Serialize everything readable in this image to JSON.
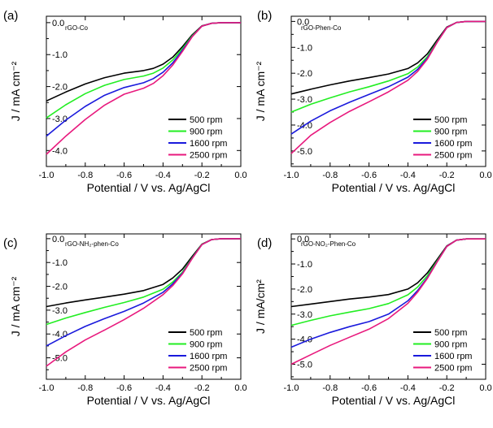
{
  "chart_data": [
    {
      "type": "line",
      "panel_label": "(a)",
      "inset_label": "rGO-Co",
      "xlabel": "Potential / V vs. Ag/AgCl",
      "ylabel": "J / mA cm⁻²",
      "xlim": [
        -1.0,
        0.0
      ],
      "ylim": [
        -4.5,
        0.2
      ],
      "xticks": [
        "-1.0",
        "-0.8",
        "-0.6",
        "-0.4",
        "-0.2",
        "0.0"
      ],
      "yticks": [
        "0.0",
        "-1.0",
        "-2.0",
        "-3.0",
        "-4.0"
      ],
      "legend_position": "lower-right",
      "x": [
        -1.0,
        -0.9,
        -0.8,
        -0.7,
        -0.6,
        -0.5,
        -0.45,
        -0.4,
        -0.35,
        -0.3,
        -0.25,
        -0.2,
        -0.15,
        -0.1,
        -0.05,
        0.0
      ],
      "series": [
        {
          "name": "500 rpm",
          "values": [
            -2.45,
            -2.17,
            -1.92,
            -1.72,
            -1.58,
            -1.5,
            -1.43,
            -1.3,
            -1.08,
            -0.75,
            -0.38,
            -0.1,
            -0.02,
            0.0,
            0.0,
            0.0
          ]
        },
        {
          "name": "900 rpm",
          "values": [
            -2.98,
            -2.57,
            -2.22,
            -1.96,
            -1.78,
            -1.67,
            -1.58,
            -1.42,
            -1.17,
            -0.81,
            -0.41,
            -0.11,
            -0.02,
            0.0,
            0.0,
            0.0
          ]
        },
        {
          "name": "1600 rpm",
          "values": [
            -3.55,
            -3.05,
            -2.62,
            -2.27,
            -2.03,
            -1.88,
            -1.75,
            -1.55,
            -1.26,
            -0.86,
            -0.43,
            -0.11,
            -0.02,
            0.0,
            0.0,
            0.0
          ]
        },
        {
          "name": "2500 rpm",
          "values": [
            -4.12,
            -3.55,
            -3.03,
            -2.58,
            -2.24,
            -2.05,
            -1.9,
            -1.66,
            -1.33,
            -0.9,
            -0.44,
            -0.11,
            -0.02,
            0.0,
            0.0,
            0.0
          ]
        }
      ]
    },
    {
      "type": "line",
      "panel_label": "(b)",
      "inset_label": "rGO-Phen-Co",
      "xlabel": "Potential / V vs. Ag/AgCl",
      "ylabel": "J / mA cm⁻²",
      "xlim": [
        -1.0,
        0.0
      ],
      "ylim": [
        -5.6,
        0.2
      ],
      "xticks": [
        "-1.0",
        "-0.8",
        "-0.6",
        "-0.4",
        "-0.2",
        "0.0"
      ],
      "yticks": [
        "0.0",
        "-1.0",
        "-2.0",
        "-3.0",
        "-4.0",
        "-5.0"
      ],
      "legend_position": "lower-right",
      "x": [
        -1.0,
        -0.9,
        -0.8,
        -0.7,
        -0.6,
        -0.5,
        -0.4,
        -0.35,
        -0.3,
        -0.25,
        -0.2,
        -0.15,
        -0.1,
        -0.05,
        0.0
      ],
      "series": [
        {
          "name": "500 rpm",
          "values": [
            -2.8,
            -2.62,
            -2.45,
            -2.3,
            -2.17,
            -2.03,
            -1.82,
            -1.6,
            -1.25,
            -0.72,
            -0.22,
            -0.04,
            0.0,
            0.0,
            0.0
          ]
        },
        {
          "name": "900 rpm",
          "values": [
            -3.5,
            -3.2,
            -2.95,
            -2.72,
            -2.52,
            -2.3,
            -2.02,
            -1.76,
            -1.36,
            -0.78,
            -0.24,
            -0.04,
            0.0,
            0.0,
            0.0
          ]
        },
        {
          "name": "1600 rpm",
          "values": [
            -4.35,
            -3.85,
            -3.45,
            -3.12,
            -2.82,
            -2.52,
            -2.15,
            -1.85,
            -1.42,
            -0.8,
            -0.24,
            -0.04,
            0.0,
            0.0,
            0.0
          ]
        },
        {
          "name": "2500 rpm",
          "values": [
            -5.1,
            -4.4,
            -3.9,
            -3.47,
            -3.1,
            -2.72,
            -2.27,
            -1.93,
            -1.46,
            -0.81,
            -0.24,
            -0.04,
            0.0,
            0.0,
            0.0
          ]
        }
      ]
    },
    {
      "type": "line",
      "panel_label": "(c)",
      "inset_label": "rGO-NH₂-phen-Co",
      "xlabel": "Potential / V vs. Ag/AgCl",
      "ylabel": "J / mA cm⁻²",
      "xlim": [
        -1.0,
        0.0
      ],
      "ylim": [
        -5.9,
        0.2
      ],
      "xticks": [
        "-1.0",
        "-0.8",
        "-0.6",
        "-0.4",
        "-0.2",
        "0.0"
      ],
      "yticks": [
        "0.0",
        "-1.0",
        "-2.0",
        "-3.0",
        "-4.0",
        "-5.0"
      ],
      "legend_position": "lower-right",
      "x": [
        -1.0,
        -0.9,
        -0.8,
        -0.7,
        -0.6,
        -0.5,
        -0.4,
        -0.35,
        -0.3,
        -0.25,
        -0.2,
        -0.15,
        -0.1,
        -0.05,
        0.0
      ],
      "series": [
        {
          "name": "500 rpm",
          "values": [
            -2.85,
            -2.7,
            -2.57,
            -2.45,
            -2.33,
            -2.18,
            -1.92,
            -1.65,
            -1.28,
            -0.74,
            -0.23,
            -0.04,
            0.0,
            0.0,
            0.0
          ]
        },
        {
          "name": "900 rpm",
          "values": [
            -3.6,
            -3.33,
            -3.1,
            -2.88,
            -2.68,
            -2.45,
            -2.12,
            -1.82,
            -1.4,
            -0.8,
            -0.24,
            -0.04,
            0.0,
            0.0,
            0.0
          ]
        },
        {
          "name": "1600 rpm",
          "values": [
            -4.5,
            -4.07,
            -3.68,
            -3.35,
            -3.05,
            -2.7,
            -2.25,
            -1.9,
            -1.45,
            -0.82,
            -0.25,
            -0.04,
            0.0,
            0.0,
            0.0
          ]
        },
        {
          "name": "2500 rpm",
          "values": [
            -5.35,
            -4.75,
            -4.25,
            -3.83,
            -3.4,
            -2.92,
            -2.35,
            -1.97,
            -1.48,
            -0.83,
            -0.25,
            -0.04,
            0.0,
            0.0,
            0.0
          ]
        }
      ]
    },
    {
      "type": "line",
      "panel_label": "(d)",
      "inset_label": "rGO-NO₂-Phen-Co",
      "xlabel": "Potential / V vs. Ag/AgCl",
      "ylabel": "J / mA/cm²",
      "xlim": [
        -1.0,
        0.0
      ],
      "ylim": [
        -5.6,
        0.2
      ],
      "xticks": [
        "-1.0",
        "-0.8",
        "-0.6",
        "-0.4",
        "-0.2",
        "0.0"
      ],
      "yticks": [
        "0.0",
        "-1.0",
        "-2.0",
        "-3.0",
        "-4.0",
        "-5.0"
      ],
      "legend_position": "lower-right",
      "x": [
        -1.0,
        -0.9,
        -0.8,
        -0.7,
        -0.6,
        -0.5,
        -0.4,
        -0.35,
        -0.3,
        -0.25,
        -0.2,
        -0.15,
        -0.1,
        -0.05,
        0.0
      ],
      "series": [
        {
          "name": "500 rpm",
          "values": [
            -2.7,
            -2.6,
            -2.5,
            -2.4,
            -2.32,
            -2.22,
            -2.0,
            -1.75,
            -1.36,
            -0.82,
            -0.28,
            -0.05,
            0.0,
            0.0,
            0.0
          ]
        },
        {
          "name": "900 rpm",
          "values": [
            -3.45,
            -3.25,
            -3.07,
            -2.92,
            -2.78,
            -2.58,
            -2.23,
            -1.92,
            -1.47,
            -0.88,
            -0.3,
            -0.05,
            0.0,
            0.0,
            0.0
          ]
        },
        {
          "name": "1600 rpm",
          "values": [
            -4.32,
            -4.0,
            -3.73,
            -3.5,
            -3.3,
            -3.0,
            -2.47,
            -2.06,
            -1.55,
            -0.91,
            -0.3,
            -0.05,
            0.0,
            0.0,
            0.0
          ]
        },
        {
          "name": "2500 rpm",
          "values": [
            -5.0,
            -4.62,
            -4.25,
            -3.92,
            -3.6,
            -3.18,
            -2.57,
            -2.12,
            -1.58,
            -0.92,
            -0.3,
            -0.05,
            0.0,
            0.0,
            0.0
          ]
        }
      ]
    }
  ],
  "series_colors": [
    "#000000",
    "#22ee22",
    "#1a1adc",
    "#e8197d"
  ]
}
